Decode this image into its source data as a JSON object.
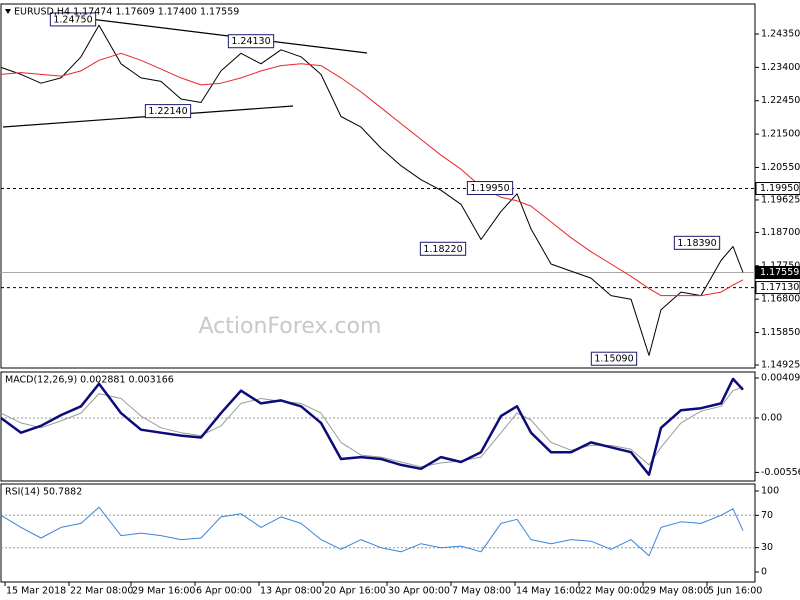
{
  "chart_data": [
    {
      "type": "line",
      "title": "EURUSD,H4  1.17474 1.17609 1.17400 1.17559",
      "watermark": "ActionForex.com",
      "xlim": [
        0,
        377
      ],
      "x": [
        0,
        10,
        20,
        30,
        40,
        49,
        60,
        70,
        80,
        90,
        100,
        110,
        120,
        130,
        140,
        150,
        160,
        170,
        180,
        190,
        200,
        210,
        220,
        230,
        240,
        250,
        258,
        265,
        275,
        285,
        295,
        305,
        315,
        324,
        330,
        340,
        350,
        360,
        366,
        371
      ],
      "ylim": [
        1.1484,
        1.25204
      ],
      "yticks": [
        {
          "value": 1.2435,
          "label": "1.24350"
        },
        {
          "value": 1.234,
          "label": "1.23400"
        },
        {
          "value": 1.2245,
          "label": "1.22450"
        },
        {
          "value": 1.215,
          "label": "1.21500"
        },
        {
          "value": 1.2055,
          "label": "1.20550"
        },
        {
          "value": 1.19625,
          "label": "1.19625"
        },
        {
          "value": 1.187,
          "label": "1.18700"
        },
        {
          "value": 1.1775,
          "label": "1.17750"
        },
        {
          "value": 1.168,
          "label": "1.16800"
        },
        {
          "value": 1.1585,
          "label": "1.15850"
        },
        {
          "value": 1.14925,
          "label": "1.14925"
        }
      ],
      "series": [
        {
          "color": "#000000",
          "width": 1,
          "values": [
            1.234,
            1.232,
            1.2295,
            1.231,
            1.237,
            1.246,
            1.235,
            1.231,
            1.23,
            1.225,
            1.224,
            1.233,
            1.238,
            1.235,
            1.239,
            1.237,
            1.232,
            1.22,
            1.217,
            1.211,
            1.206,
            1.202,
            1.199,
            1.195,
            1.185,
            1.193,
            1.198,
            1.188,
            1.178,
            1.176,
            1.174,
            1.169,
            1.168,
            1.152,
            1.165,
            1.17,
            1.169,
            1.179,
            1.183,
            1.1756
          ]
        },
        {
          "color": "#e8262a",
          "width": 1,
          "values": [
            1.232,
            1.2325,
            1.232,
            1.2315,
            1.233,
            1.236,
            1.238,
            1.236,
            1.2335,
            1.231,
            1.229,
            1.2295,
            1.231,
            1.233,
            1.2345,
            1.235,
            1.2345,
            1.231,
            1.227,
            1.2225,
            1.218,
            1.2135,
            1.209,
            1.205,
            1.2,
            1.197,
            1.196,
            1.1945,
            1.19,
            1.1855,
            1.1815,
            1.178,
            1.1745,
            1.171,
            1.169,
            1.169,
            1.169,
            1.17,
            1.172,
            1.1735
          ]
        }
      ],
      "hlines": [
        {
          "value": 1.1995,
          "label": "1.19950",
          "style": "dashed"
        },
        {
          "value": 1.17559,
          "label": "1.17559",
          "style": "solid"
        },
        {
          "value": 1.1713,
          "label": "1.17130",
          "style": "dashed"
        }
      ],
      "annotations": [
        {
          "value": 1.2475,
          "label": "1.24750"
        },
        {
          "value": 1.2413,
          "label": "1.24130"
        },
        {
          "value": 1.2214,
          "label": "1.22140"
        },
        {
          "value": 1.1995,
          "label": "1.19950"
        },
        {
          "value": 1.1822,
          "label": "1.18220"
        },
        {
          "value": 1.1839,
          "label": "1.18390"
        },
        {
          "value": 1.1509,
          "label": "1.15090"
        }
      ]
    },
    {
      "type": "line",
      "title": "MACD(12,26,9) 0.002881 0.003166",
      "xlim": [
        0,
        377
      ],
      "x": [
        0,
        10,
        20,
        30,
        40,
        49,
        60,
        70,
        80,
        90,
        100,
        110,
        120,
        130,
        140,
        150,
        160,
        170,
        180,
        190,
        200,
        210,
        220,
        230,
        240,
        250,
        258,
        265,
        275,
        285,
        295,
        305,
        315,
        324,
        330,
        340,
        350,
        360,
        366,
        371
      ],
      "ylim": [
        -0.00645,
        0.00471
      ],
      "yticks": [
        0.004094,
        {
          "value": 0,
          "label": "0.00"
        },
        -0.005568
      ],
      "levels": [
        0
      ],
      "series": [
        {
          "color": "#9a9a9a",
          "width": 1,
          "values": [
            0.0005,
            -0.0005,
            -0.001,
            -0.0003,
            0.0005,
            0.0025,
            0.002,
            0.0002,
            -0.001,
            -0.0015,
            -0.0018,
            -0.0008,
            0.0015,
            0.002,
            0.0017,
            0.0015,
            0.0005,
            -0.0025,
            -0.0038,
            -0.004,
            -0.0045,
            -0.005,
            -0.0046,
            -0.0044,
            -0.004,
            -0.0015,
            0.0005,
            -0.0002,
            -0.0025,
            -0.0033,
            -0.0028,
            -0.0028,
            -0.0032,
            -0.0048,
            -0.003,
            -0.0005,
            0.0007,
            0.0012,
            0.0028,
            0.0032
          ]
        },
        {
          "color": "#0b0b7a",
          "width": 2.5,
          "values": [
            0,
            -0.0015,
            -0.0008,
            0.0003,
            0.0012,
            0.0035,
            0.0005,
            -0.0012,
            -0.0015,
            -0.0018,
            -0.002,
            0.0005,
            0.0028,
            0.0015,
            0.0018,
            0.0012,
            -0.0005,
            -0.0042,
            -0.004,
            -0.0042,
            -0.0048,
            -0.0052,
            -0.004,
            -0.0045,
            -0.0035,
            0.0002,
            0.0012,
            -0.0015,
            -0.0035,
            -0.0035,
            -0.0025,
            -0.003,
            -0.0035,
            -0.0058,
            -0.001,
            0.0008,
            0.001,
            0.0015,
            0.004,
            0.0029
          ]
        }
      ]
    },
    {
      "type": "line",
      "title": "RSI(14) 50.7882",
      "xlim": [
        0,
        377
      ],
      "x": [
        0,
        10,
        20,
        30,
        40,
        49,
        60,
        70,
        80,
        90,
        100,
        110,
        120,
        130,
        140,
        150,
        160,
        170,
        180,
        190,
        200,
        210,
        220,
        230,
        240,
        250,
        258,
        265,
        275,
        285,
        295,
        305,
        315,
        324,
        330,
        340,
        350,
        360,
        366,
        371
      ],
      "ylim": [
        -12.3,
        108.6
      ],
      "yticks": [
        100,
        70,
        30,
        0
      ],
      "levels": [
        70,
        30
      ],
      "series": [
        {
          "color": "#3a86d8",
          "width": 1,
          "values": [
            70,
            55,
            42,
            55,
            60,
            80,
            45,
            48,
            45,
            40,
            42,
            68,
            72,
            55,
            68,
            60,
            40,
            28,
            40,
            30,
            25,
            35,
            30,
            32,
            25,
            60,
            65,
            40,
            35,
            40,
            38,
            28,
            40,
            20,
            55,
            62,
            60,
            70,
            78,
            51
          ]
        }
      ],
      "xticks": [
        {
          "value": 2,
          "label": "15 Mar 2018"
        },
        {
          "value": 34,
          "label": "22 Mar 08:00"
        },
        {
          "value": 65,
          "label": "29 Mar 16:00"
        },
        {
          "value": 97,
          "label": "6 Apr 00:00"
        },
        {
          "value": 129,
          "label": "13 Apr 08:00"
        },
        {
          "value": 161,
          "label": "20 Apr 16:00"
        },
        {
          "value": 193,
          "label": "30 Apr 00:00"
        },
        {
          "value": 225,
          "label": "7 May 08:00"
        },
        {
          "value": 257,
          "label": "14 May 16:00"
        },
        {
          "value": 289,
          "label": "22 May 00:00"
        },
        {
          "value": 321,
          "label": "29 May 08:00"
        },
        {
          "value": 353,
          "label": "5 Jun 16:00"
        }
      ]
    }
  ]
}
